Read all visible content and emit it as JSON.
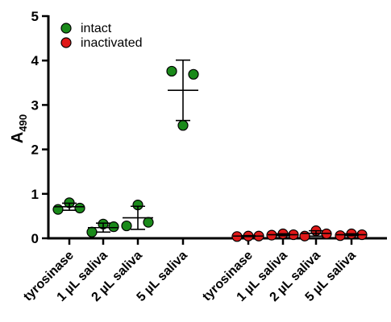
{
  "chart_data": {
    "type": "scatter",
    "ylabel": "A",
    "ylabel_subscript": "490",
    "ylim": [
      0,
      5
    ],
    "yticks": [
      0,
      1,
      2,
      3,
      4,
      5
    ],
    "categories": [
      "tyrosinase",
      "1 µL saliva",
      "2 µL saliva",
      "5 µL saliva",
      "tyrosinase",
      "1 µL saliva",
      "2 µL saliva",
      "5 µL saliva"
    ],
    "legend_position": "top-left",
    "series": [
      {
        "name": "intact",
        "color": "#1a8a1a",
        "groups": [
          {
            "category_index": 0,
            "points": [
              0.65,
              0.8,
              0.68
            ],
            "mean": 0.71,
            "sd": 0.08
          },
          {
            "category_index": 1,
            "points": [
              0.14,
              0.32,
              0.26
            ],
            "mean": 0.24,
            "sd": 0.1
          },
          {
            "category_index": 2,
            "points": [
              0.28,
              0.75,
              0.36
            ],
            "mean": 0.46,
            "sd": 0.26
          },
          {
            "category_index": 3,
            "points": [
              3.76,
              2.54,
              3.69
            ],
            "mean": 3.33,
            "sd": 0.68
          }
        ]
      },
      {
        "name": "inactivated",
        "color": "#e01818",
        "groups": [
          {
            "category_index": 4,
            "points": [
              0.04,
              0.05,
              0.05
            ],
            "mean": 0.05,
            "sd": 0.01
          },
          {
            "category_index": 5,
            "points": [
              0.07,
              0.1,
              0.08
            ],
            "mean": 0.08,
            "sd": 0.02
          },
          {
            "category_index": 6,
            "points": [
              0.05,
              0.17,
              0.1
            ],
            "mean": 0.11,
            "sd": 0.06
          },
          {
            "category_index": 7,
            "points": [
              0.06,
              0.1,
              0.08
            ],
            "mean": 0.08,
            "sd": 0.02
          }
        ]
      }
    ]
  }
}
